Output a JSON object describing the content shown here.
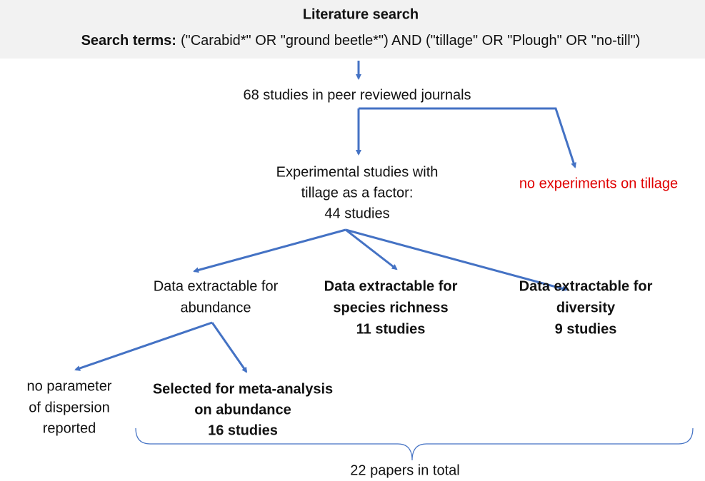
{
  "header": {
    "title": "Literature search",
    "search_label": "Search terms:",
    "search_terms": "(\"Carabid*\" OR \"ground beetle*\") AND (\"tillage\" OR \"Plough\" OR \"no-till\")"
  },
  "nodes": [
    {
      "lines": [
        "68 studies in peer reviewed journals"
      ]
    },
    {
      "lines": [
        "Experimental studies with",
        "tillage as a factor:",
        "44 studies"
      ]
    },
    {
      "lines": [
        "no experiments on tillage"
      ]
    },
    {
      "lines": [
        "Data extractable for",
        "abundance"
      ]
    },
    {
      "lines": [
        "Data extractable for",
        "species richness",
        "11 studies"
      ]
    },
    {
      "lines": [
        "Data extractable for",
        "diversity",
        "9 studies"
      ]
    },
    {
      "lines": [
        "no parameter",
        "of dispersion",
        "reported"
      ]
    },
    {
      "lines": [
        "Selected for meta-analysis",
        "on abundance",
        "16 studies"
      ]
    },
    {
      "lines": [
        "22 papers in total"
      ]
    }
  ]
}
